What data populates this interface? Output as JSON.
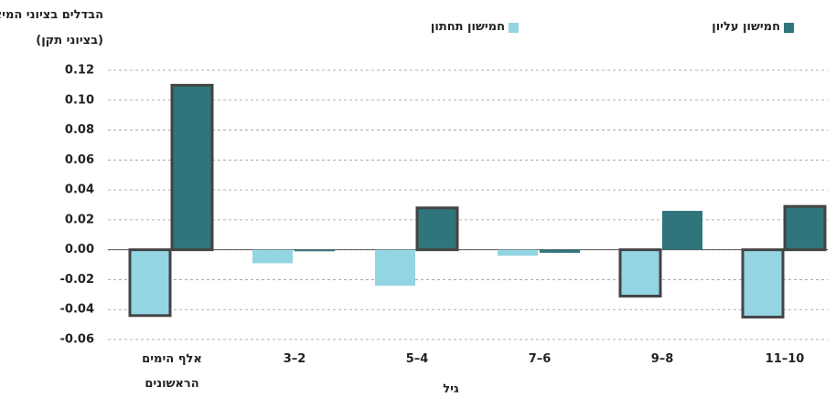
{
  "chart_data": {
    "type": "bar",
    "ylabel": "הבדלים בציוני המיצ\"ב",
    "ylabel_note": "(בציוני תקן)",
    "xlabel": "גיל",
    "categories": [
      "אלף הימים הראשונים",
      "2–3",
      "4–5",
      "6–7",
      "8–9",
      "10–11"
    ],
    "series": [
      {
        "name": "חמישון תחתון",
        "color": "#93d5e2",
        "values": [
          -0.044,
          -0.009,
          -0.024,
          -0.004,
          -0.031,
          -0.045
        ],
        "outline": [
          true,
          false,
          false,
          false,
          true,
          true
        ]
      },
      {
        "name": "חמישון עליון",
        "color": "#2f757b",
        "values": [
          0.11,
          -0.001,
          0.028,
          -0.002,
          0.026,
          0.029
        ],
        "outline": [
          true,
          false,
          true,
          false,
          false,
          true
        ]
      }
    ],
    "ylim": [
      -0.06,
      0.12
    ],
    "yticks": [
      -0.06,
      -0.04,
      -0.02,
      {
        "value": 0,
        "label": "0.00"
      },
      0.02,
      0.04,
      0.06,
      0.08,
      {
        "value": 0.1,
        "label": "0.10"
      },
      0.12
    ],
    "grid": true
  }
}
